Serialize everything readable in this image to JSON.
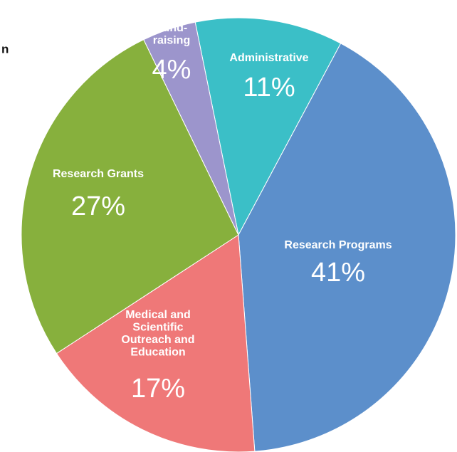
{
  "chart_data": {
    "type": "pie",
    "annotation": "n",
    "categories": [
      [
        "Administrative"
      ],
      [
        "Research Programs"
      ],
      [
        "Medical and",
        "Scientific",
        "Outreach and",
        "Education"
      ],
      [
        "Research Grants"
      ],
      [
        "Fund-",
        "raising"
      ]
    ],
    "values": [
      11,
      41,
      17,
      27,
      4
    ],
    "value_labels": [
      "11%",
      "41%",
      "17%",
      "27%",
      "4%"
    ],
    "colors": [
      "#3bbfc7",
      "#5c8fcb",
      "#ef7878",
      "#87b03d",
      "#9c95cc"
    ]
  }
}
